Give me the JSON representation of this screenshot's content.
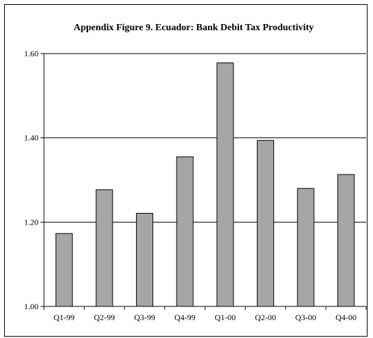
{
  "chart_data": {
    "type": "bar",
    "title": "Appendix Figure 9. Ecuador: Bank Debit Tax Productivity",
    "xlabel": "",
    "ylabel": "",
    "categories": [
      "Q1-99",
      "Q2-99",
      "Q3-99",
      "Q4-99",
      "Q1-00",
      "Q2-00",
      "Q3-00",
      "Q4-00"
    ],
    "values": [
      1.173,
      1.277,
      1.221,
      1.355,
      1.578,
      1.394,
      1.28,
      1.313
    ],
    "ylim": [
      1.0,
      1.6
    ],
    "yticks": [
      "1.00",
      "1.20",
      "1.40",
      "1.60"
    ],
    "grid": true,
    "bar_color": "#a6a6a6"
  }
}
